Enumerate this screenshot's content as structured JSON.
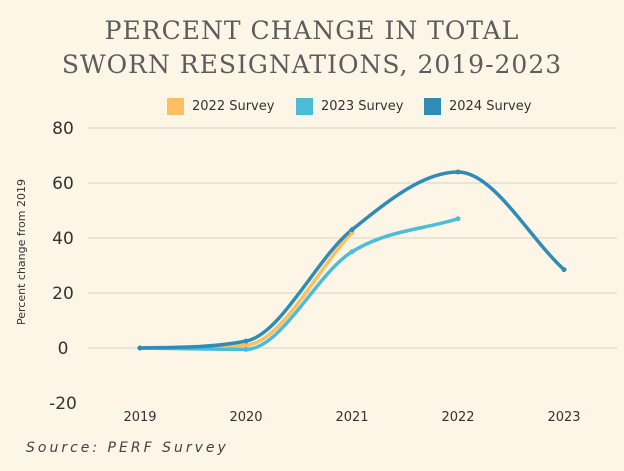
{
  "chart_data": {
    "type": "line",
    "title_lines": [
      "PERCENT CHANGE IN TOTAL",
      "SWORN RESIGNATIONS, 2019-2023"
    ],
    "ylabel": "Percent change from 2019",
    "xlabel": "",
    "categories": [
      "2019",
      "2020",
      "2021",
      "2022",
      "2023"
    ],
    "yticks": [
      80,
      60,
      40,
      20,
      0,
      -20
    ],
    "ylim": [
      -20,
      80
    ],
    "grid": "horizontal",
    "legend_position": "top",
    "series": [
      {
        "name": "2022 Survey",
        "color": "#ffbf5e",
        "x": [
          0,
          1,
          2
        ],
        "values": [
          0,
          1,
          42
        ]
      },
      {
        "name": "2023 Survey",
        "color": "#4cbcd9",
        "x": [
          0,
          1,
          2,
          3
        ],
        "values": [
          0,
          -0.5,
          35,
          47
        ]
      },
      {
        "name": "2024 Survey",
        "color": "#2f8bb8",
        "x": [
          0,
          1,
          2,
          3,
          4
        ],
        "values": [
          0,
          2.5,
          43,
          64,
          28.5
        ]
      }
    ]
  },
  "source": "Source: PERF Survey"
}
